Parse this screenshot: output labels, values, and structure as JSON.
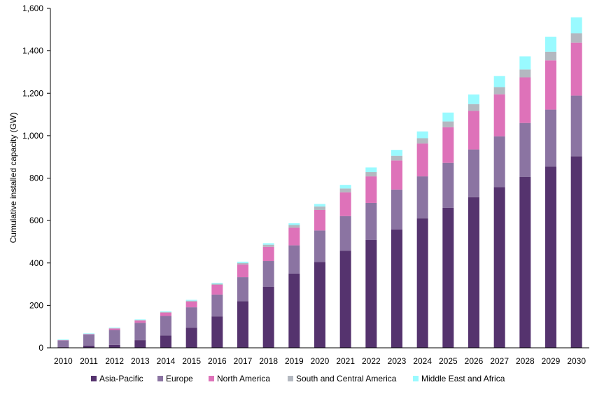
{
  "chart_data": {
    "type": "bar",
    "stacked": true,
    "title": "",
    "xlabel": "",
    "ylabel": "Cumulative installed capacity (GW)",
    "ylim": [
      0,
      1600
    ],
    "ytick_step": 200,
    "ytick_labels": [
      "0",
      "200",
      "400",
      "600",
      "800",
      "1,000",
      "1,200",
      "1,400",
      "1,600"
    ],
    "grid": false,
    "legend_position": "bottom",
    "categories": [
      "2010",
      "2011",
      "2012",
      "2013",
      "2014",
      "2015",
      "2016",
      "2017",
      "2018",
      "2019",
      "2020",
      "2021",
      "2022",
      "2023",
      "2024",
      "2025",
      "2026",
      "2027",
      "2028",
      "2029",
      "2030"
    ],
    "series": [
      {
        "name": "Asia-Pacific",
        "color": "#55336E",
        "values": [
          3,
          10,
          14,
          36,
          58,
          95,
          148,
          220,
          287,
          350,
          405,
          458,
          508,
          558,
          610,
          660,
          710,
          757,
          805,
          855,
          903
        ]
      },
      {
        "name": "Europe",
        "color": "#8B74A2",
        "values": [
          32,
          53,
          70,
          82,
          92,
          96,
          103,
          113,
          122,
          133,
          148,
          163,
          175,
          188,
          198,
          212,
          225,
          240,
          255,
          268,
          286
        ]
      },
      {
        "name": "North America",
        "color": "#DE72B9",
        "values": [
          1,
          2,
          7,
          11,
          16,
          27,
          46,
          60,
          67,
          83,
          97,
          112,
          125,
          137,
          155,
          168,
          182,
          198,
          215,
          232,
          250
        ]
      },
      {
        "name": "South and Central America",
        "color": "#B3B8C0",
        "values": [
          0,
          0,
          1,
          2,
          3,
          4,
          5,
          7,
          10,
          13,
          16,
          18,
          20,
          22,
          25,
          27,
          32,
          34,
          37,
          41,
          44
        ]
      },
      {
        "name": "Middle East and Africa",
        "color": "#99FAFF",
        "values": [
          3,
          3,
          3,
          3,
          3,
          4,
          4,
          6,
          7,
          8,
          12,
          17,
          22,
          28,
          32,
          42,
          45,
          52,
          62,
          70,
          75
        ]
      }
    ]
  }
}
